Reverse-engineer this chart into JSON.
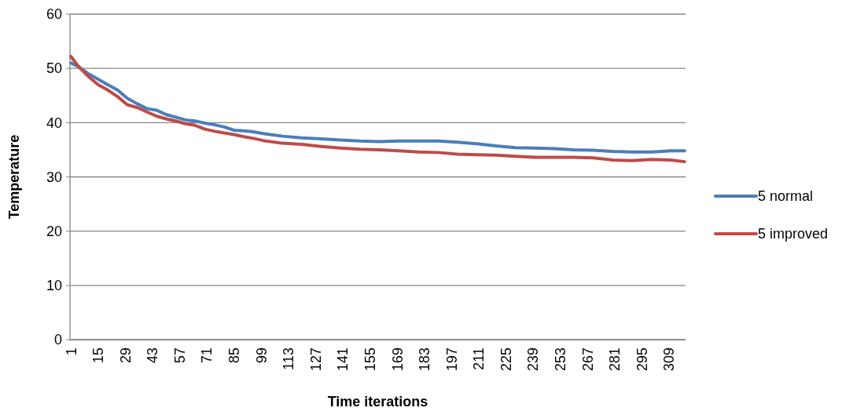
{
  "chart_data": {
    "type": "line",
    "xlabel": "Time iterations",
    "ylabel": "Temperature",
    "x": [
      1,
      5,
      10,
      15,
      20,
      25,
      30,
      35,
      40,
      45,
      50,
      55,
      60,
      65,
      70,
      75,
      80,
      85,
      90,
      95,
      100,
      110,
      120,
      130,
      140,
      150,
      160,
      170,
      180,
      190,
      200,
      210,
      220,
      230,
      240,
      250,
      260,
      270,
      280,
      290,
      300,
      310,
      317
    ],
    "series": [
      {
        "name": "5 normal",
        "color": "#4a7ebb",
        "values": [
          51,
          50.3,
          49,
          48,
          47,
          46,
          44.5,
          43.5,
          42.6,
          42.3,
          41.5,
          41,
          40.5,
          40.3,
          39.9,
          39.6,
          39.2,
          38.6,
          38.5,
          38.3,
          38,
          37.5,
          37.2,
          37,
          36.8,
          36.6,
          36.5,
          36.6,
          36.6,
          36.6,
          36.4,
          36.1,
          35.7,
          35.4,
          35.3,
          35.2,
          35,
          34.9,
          34.7,
          34.6,
          34.6,
          34.8,
          34.8
        ]
      },
      {
        "name": "5 improved",
        "color": "#be4b48",
        "values": [
          52.2,
          50.3,
          48.5,
          47,
          46,
          44.8,
          43.3,
          42.8,
          42,
          41.2,
          40.7,
          40.3,
          39.8,
          39.5,
          38.8,
          38.4,
          38.1,
          37.8,
          37.4,
          37.1,
          36.7,
          36.2,
          36,
          35.6,
          35.3,
          35.1,
          35,
          34.8,
          34.6,
          34.5,
          34.2,
          34.1,
          34,
          33.8,
          33.6,
          33.6,
          33.6,
          33.5,
          33.1,
          33,
          33.2,
          33.1,
          32.8
        ]
      }
    ],
    "xlim": [
      0.5,
      317.5
    ],
    "xticks": [
      1,
      15,
      29,
      43,
      57,
      71,
      85,
      99,
      113,
      127,
      141,
      155,
      169,
      183,
      197,
      211,
      225,
      239,
      253,
      267,
      281,
      295,
      309
    ],
    "ylim": [
      0,
      60
    ],
    "yticks": [
      0,
      10,
      20,
      30,
      40,
      50,
      60
    ],
    "grid": "y",
    "legend": "right",
    "marker": "none",
    "line_style": "solid"
  }
}
